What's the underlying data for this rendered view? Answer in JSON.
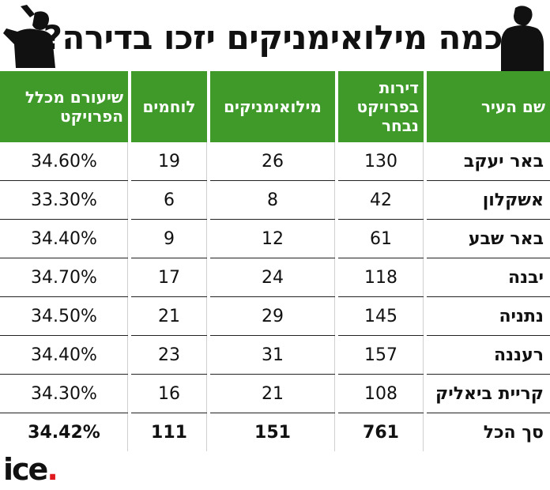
{
  "title": "כמה מילואימניקים יזכו בדירה?",
  "headers": {
    "city": "שם העיר",
    "apartments": "דירות בפרויקט נבחר",
    "reservists": "מילואימניקים",
    "fighters": "לוחמים",
    "share": "שיעורם מכלל הפרויקט"
  },
  "rows": [
    {
      "city": "באר יעקב",
      "apartments": "130",
      "reservists": "26",
      "fighters": "19",
      "share": "34.60%"
    },
    {
      "city": "אשקלון",
      "apartments": "42",
      "reservists": "8",
      "fighters": "6",
      "share": "33.30%"
    },
    {
      "city": "באר שבע",
      "apartments": "61",
      "reservists": "12",
      "fighters": "9",
      "share": "34.40%"
    },
    {
      "city": "יבנה",
      "apartments": "118",
      "reservists": "24",
      "fighters": "17",
      "share": "34.70%"
    },
    {
      "city": "נתניה",
      "apartments": "145",
      "reservists": "29",
      "fighters": "21",
      "share": "34.50%"
    },
    {
      "city": "רעננה",
      "apartments": "157",
      "reservists": "31",
      "fighters": "23",
      "share": "34.40%"
    },
    {
      "city": "קריית ביאליק",
      "apartments": "108",
      "reservists": "21",
      "fighters": "16",
      "share": "34.30%"
    }
  ],
  "total": {
    "city": "סך הכל",
    "apartments": "761",
    "reservists": "151",
    "fighters": "111",
    "share": "34.42%"
  },
  "logo": {
    "text": "ice",
    "dot": "."
  },
  "colors": {
    "header_green": "#3f9a2a",
    "logo_dot": "#e0191f"
  }
}
